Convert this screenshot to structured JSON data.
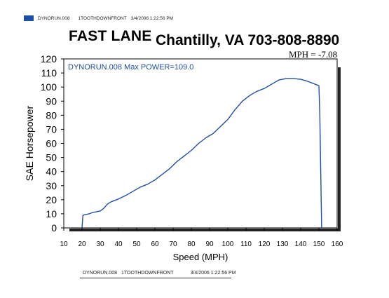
{
  "header": {
    "run_file": "DYNORUN.008",
    "run_desc": "1TOOTHDOWNFRONT",
    "timestamp": "3/4/2006 1:22:56 PM"
  },
  "shop_name": "FAST LANE",
  "location": "Chantilly, VA 703-808-8890",
  "mph_note": "MPH = -7.08",
  "footer": {
    "run_file": "DYNORUN.008",
    "run_desc": "1TOOTHDOWNFRONT",
    "timestamp": "3/4/2006 1:22:56 PM"
  },
  "colors": {
    "series": "#1f4fa5",
    "legend_swatch": "#1f4fa5"
  },
  "chart_data": {
    "type": "line",
    "title": "DYNORUN.008  Max POWER=109.0",
    "xlabel": "Speed (MPH)",
    "ylabel": "SAE Horsepower",
    "xlim": [
      10,
      160
    ],
    "ylim": [
      0,
      120
    ],
    "xticks": [
      10,
      20,
      30,
      40,
      50,
      60,
      70,
      80,
      90,
      100,
      110,
      120,
      130,
      140,
      150,
      160
    ],
    "yticks": [
      0,
      10,
      20,
      30,
      40,
      50,
      60,
      70,
      80,
      90,
      100,
      110,
      120
    ],
    "grid": false,
    "series": [
      {
        "name": "DYNORUN.008",
        "x": [
          20,
          20.5,
          22,
          24,
          26,
          28,
          30,
          32,
          34,
          36,
          38,
          40,
          44,
          48,
          52,
          56,
          60,
          64,
          68,
          72,
          76,
          80,
          84,
          88,
          92,
          96,
          100,
          104,
          108,
          112,
          116,
          120,
          124,
          128,
          132,
          136,
          140,
          144,
          148,
          150,
          150.5,
          151,
          151.5
        ],
        "y": [
          0,
          9,
          9.5,
          10,
          11,
          11.5,
          12,
          14,
          17,
          18.5,
          19.5,
          20.5,
          23,
          26,
          29,
          31,
          34,
          38,
          42,
          47,
          51,
          55,
          60,
          64,
          67,
          72,
          77,
          84,
          90,
          94,
          97,
          99,
          102,
          105,
          106,
          106,
          105.5,
          104,
          102,
          101,
          80,
          40,
          0
        ]
      }
    ]
  }
}
